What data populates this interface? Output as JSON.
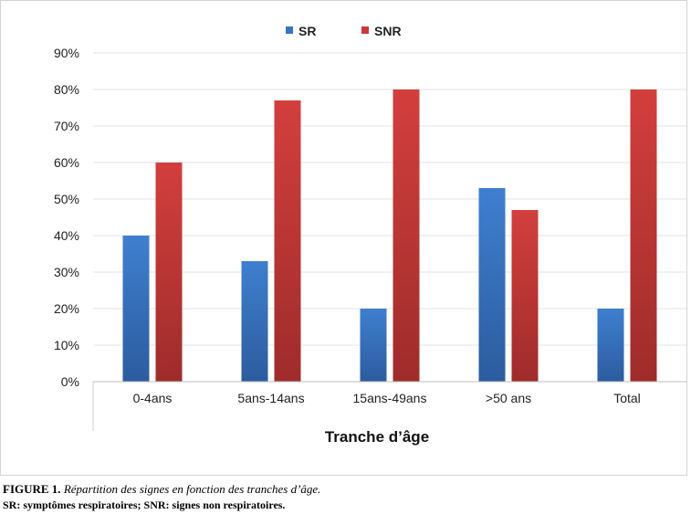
{
  "chart_data": {
    "type": "bar",
    "categories": [
      "0-4ans",
      "5ans-14ans",
      "15ans-49ans",
      ">50 ans",
      "Total"
    ],
    "series": [
      {
        "name": "SR",
        "values": [
          40,
          33,
          20,
          53,
          20
        ],
        "color": "#3a74c1"
      },
      {
        "name": "SNR",
        "values": [
          60,
          77,
          80,
          47,
          80
        ],
        "color": "#c83a38"
      }
    ],
    "ylim": [
      0,
      90
    ],
    "yticks": [
      "0%",
      "10%",
      "20%",
      "30%",
      "40%",
      "50%",
      "60%",
      "70%",
      "80%",
      "90%"
    ],
    "xlabel": "Tranche d’âge",
    "ylabel": "",
    "grid": true,
    "legend_position": "top-center"
  },
  "caption": {
    "label": "FIGURE 1.",
    "title": "Répartition des signes en fonction des tranches d’âge.",
    "note": "SR: symptômes respiratoires; SNR: signes non respiratoires."
  }
}
